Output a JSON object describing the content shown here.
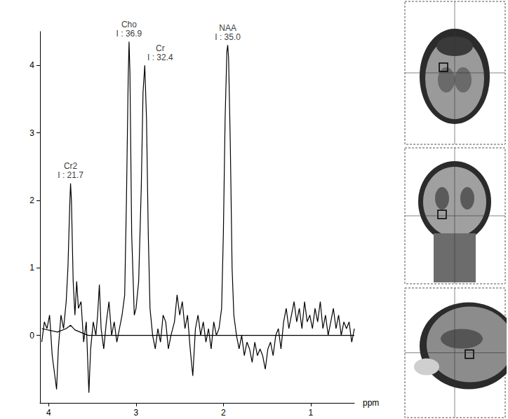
{
  "chart_data": {
    "type": "line",
    "x_label": "ppm",
    "xlim": [
      4.1,
      0.5
    ],
    "xticks": [
      4,
      3,
      2,
      1
    ],
    "ylim": [
      -1,
      4.5
    ],
    "yticks": [
      0,
      1,
      2,
      3,
      4
    ],
    "grid": false,
    "series": [
      {
        "color": "#000000",
        "x": [
          4.08,
          4.05,
          4.02,
          3.99,
          3.96,
          3.93,
          3.91,
          3.89,
          3.86,
          3.83,
          3.8,
          3.78,
          3.76,
          3.75,
          3.74,
          3.72,
          3.7,
          3.68,
          3.66,
          3.63,
          3.6,
          3.57,
          3.55,
          3.54,
          3.52,
          3.49,
          3.46,
          3.44,
          3.42,
          3.4,
          3.37,
          3.34,
          3.31,
          3.28,
          3.25,
          3.22,
          3.19,
          3.16,
          3.13,
          3.11,
          3.09,
          3.08,
          3.07,
          3.05,
          3.02,
          3.0,
          2.97,
          2.94,
          2.92,
          2.9,
          2.88,
          2.86,
          2.84,
          2.81,
          2.78,
          2.75,
          2.72,
          2.69,
          2.66,
          2.63,
          2.6,
          2.56,
          2.53,
          2.5,
          2.47,
          2.44,
          2.41,
          2.38,
          2.35,
          2.32,
          2.29,
          2.26,
          2.23,
          2.2,
          2.17,
          2.14,
          2.11,
          2.08,
          2.05,
          2.02,
          2.0,
          1.98,
          1.96,
          1.95,
          1.94,
          1.92,
          1.9,
          1.88,
          1.85,
          1.82,
          1.79,
          1.76,
          1.73,
          1.7,
          1.67,
          1.64,
          1.61,
          1.58,
          1.55,
          1.52,
          1.49,
          1.46,
          1.43,
          1.4,
          1.37,
          1.34,
          1.31,
          1.28,
          1.25,
          1.22,
          1.19,
          1.16,
          1.13,
          1.1,
          1.07,
          1.04,
          1.01,
          0.98,
          0.95,
          0.92,
          0.89,
          0.86,
          0.83,
          0.8,
          0.77,
          0.74,
          0.71,
          0.68,
          0.65,
          0.62,
          0.59,
          0.56,
          0.53,
          0.5
        ],
        "values": [
          -0.1,
          0.2,
          0.1,
          0.3,
          -0.3,
          -0.6,
          -0.8,
          -0.2,
          0.3,
          0.1,
          0.5,
          1.0,
          1.9,
          2.25,
          2.0,
          0.8,
          0.3,
          0.8,
          0.4,
          0.5,
          -0.1,
          0.2,
          -0.5,
          -0.85,
          -0.2,
          0.2,
          0.0,
          0.3,
          0.75,
          0.1,
          -0.2,
          0.2,
          0.5,
          0.0,
          0.2,
          -0.1,
          0.1,
          0.3,
          0.6,
          2.0,
          3.8,
          4.35,
          3.9,
          1.5,
          0.3,
          0.4,
          0.8,
          2.2,
          3.6,
          4.0,
          3.2,
          1.5,
          0.4,
          0.0,
          -0.2,
          0.1,
          -0.1,
          0.3,
          0.2,
          -0.2,
          0.0,
          0.2,
          0.6,
          0.3,
          0.5,
          0.1,
          0.3,
          -0.2,
          -0.6,
          0.1,
          0.3,
          0.0,
          0.2,
          -0.1,
          0.1,
          -0.2,
          0.2,
          0.0,
          0.1,
          0.4,
          1.5,
          3.2,
          4.2,
          4.3,
          4.1,
          2.8,
          1.0,
          0.3,
          0.0,
          -0.2,
          0.0,
          -0.3,
          -0.1,
          -0.2,
          -0.4,
          -0.1,
          -0.3,
          -0.2,
          -0.3,
          -0.5,
          -0.2,
          -0.1,
          -0.3,
          0.0,
          0.1,
          -0.2,
          0.2,
          0.4,
          0.1,
          0.3,
          0.5,
          0.2,
          0.4,
          0.1,
          0.5,
          0.2,
          0.3,
          0.1,
          0.4,
          0.2,
          0.5,
          0.1,
          0.3,
          0.0,
          0.2,
          0.4,
          0.1,
          0.3,
          0.0,
          0.2,
          0.1,
          0.2,
          -0.1,
          0.1
        ]
      },
      {
        "color": "#000000",
        "x": [
          4.08,
          3.9,
          3.8,
          3.75,
          3.7,
          3.55,
          3.0,
          2.0,
          1.0,
          0.5
        ],
        "values": [
          0.1,
          0.05,
          0.1,
          0.15,
          0.08,
          0.0,
          0.0,
          0.0,
          0.0,
          0.0
        ]
      }
    ],
    "annotations": [
      {
        "lines": [
          "Cr2",
          "I : 21.7"
        ],
        "x": 3.75,
        "y": 2.25
      },
      {
        "lines": [
          "Cho",
          "I : 36.9"
        ],
        "x": 3.08,
        "y": 4.35
      },
      {
        "lines": [
          "Cr",
          "I : 32.4"
        ],
        "x": 2.9,
        "y": 4.0
      },
      {
        "lines": [
          "NAA",
          "I : 35.0"
        ],
        "x": 1.95,
        "y": 4.3
      }
    ]
  }
}
